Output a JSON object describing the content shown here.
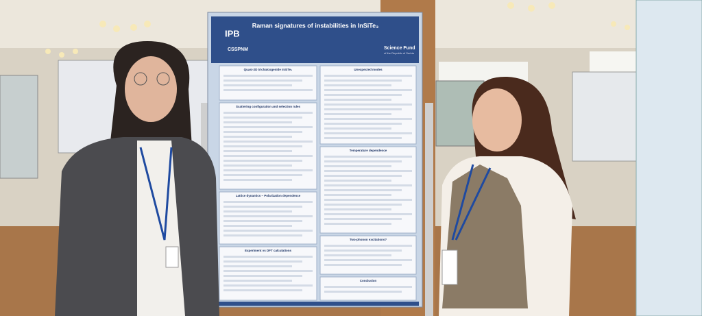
{
  "poster": {
    "title": "Raman signatures of instabilities in InSiTe₃",
    "logos": [
      "IPB",
      "CSSPNM"
    ],
    "funder": "Science Fund",
    "funder_sub": "of the Republic of Serbia",
    "sections": [
      "Quasi-2D trichalcogenide InSiTe₃",
      "Scattering configuration and selection rules",
      "Lattice dynamics – Polarization dependence",
      "Experiment vs DFT calculations",
      "Unexpected modes",
      "Temperature dependence",
      "Two-phonon excitations?",
      "Conclusion"
    ]
  }
}
